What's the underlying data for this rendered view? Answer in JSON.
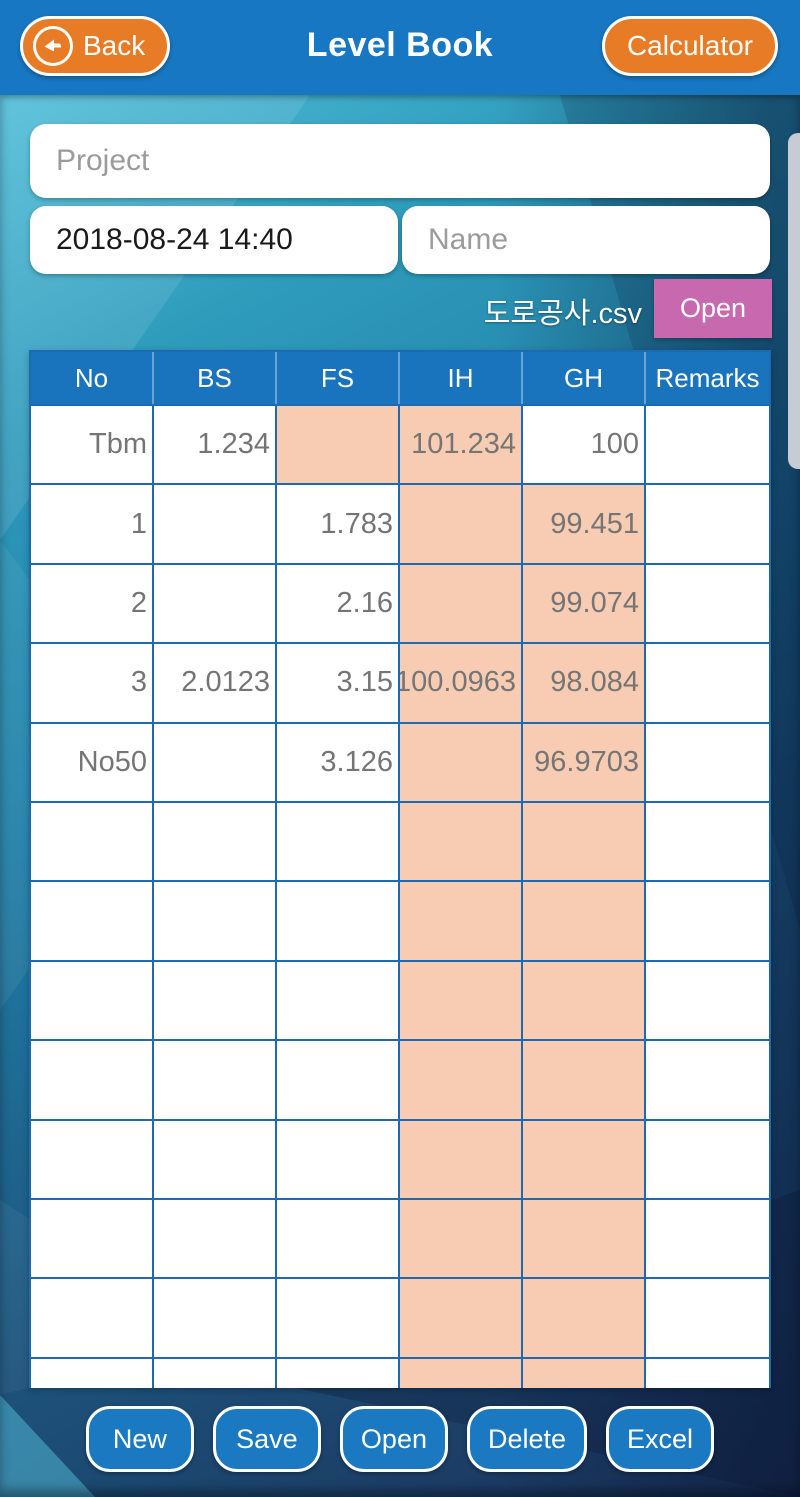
{
  "topbar": {
    "back_label": "Back",
    "title": "Level Book",
    "calculator_label": "Calculator"
  },
  "form": {
    "project_placeholder": "Project",
    "datetime_value": "2018-08-24 14:40",
    "name_placeholder": "Name",
    "csv_filename": "도로공사.csv",
    "open_label": "Open"
  },
  "table": {
    "columns": [
      "No",
      "BS",
      "FS",
      "IH",
      "GH",
      "Remarks"
    ],
    "rows": [
      {
        "cells": [
          {
            "t": "Tbm",
            "hl": false
          },
          {
            "t": "1.234",
            "hl": false
          },
          {
            "t": "",
            "hl": true
          },
          {
            "t": "101.234",
            "hl": true
          },
          {
            "t": "100",
            "hl": false
          },
          {
            "t": "",
            "hl": false
          }
        ]
      },
      {
        "cells": [
          {
            "t": "1",
            "hl": false
          },
          {
            "t": "",
            "hl": false
          },
          {
            "t": "1.783",
            "hl": false
          },
          {
            "t": "",
            "hl": true
          },
          {
            "t": "99.451",
            "hl": true
          },
          {
            "t": "",
            "hl": false
          }
        ]
      },
      {
        "cells": [
          {
            "t": "2",
            "hl": false
          },
          {
            "t": "",
            "hl": false
          },
          {
            "t": "2.16",
            "hl": false
          },
          {
            "t": "",
            "hl": true
          },
          {
            "t": "99.074",
            "hl": true
          },
          {
            "t": "",
            "hl": false
          }
        ]
      },
      {
        "cells": [
          {
            "t": "3",
            "hl": false
          },
          {
            "t": "2.0123",
            "hl": false
          },
          {
            "t": "3.15",
            "hl": false
          },
          {
            "t": "100.0963",
            "hl": true
          },
          {
            "t": "98.084",
            "hl": true
          },
          {
            "t": "",
            "hl": false
          }
        ]
      },
      {
        "cells": [
          {
            "t": "No50",
            "hl": false
          },
          {
            "t": "",
            "hl": false
          },
          {
            "t": "3.126",
            "hl": false
          },
          {
            "t": "",
            "hl": true
          },
          {
            "t": "96.9703",
            "hl": true
          },
          {
            "t": "",
            "hl": false
          }
        ]
      },
      {
        "cells": [
          {
            "t": "",
            "hl": false
          },
          {
            "t": "",
            "hl": false
          },
          {
            "t": "",
            "hl": false
          },
          {
            "t": "",
            "hl": true
          },
          {
            "t": "",
            "hl": true
          },
          {
            "t": "",
            "hl": false
          }
        ]
      },
      {
        "cells": [
          {
            "t": "",
            "hl": false
          },
          {
            "t": "",
            "hl": false
          },
          {
            "t": "",
            "hl": false
          },
          {
            "t": "",
            "hl": true
          },
          {
            "t": "",
            "hl": true
          },
          {
            "t": "",
            "hl": false
          }
        ]
      },
      {
        "cells": [
          {
            "t": "",
            "hl": false
          },
          {
            "t": "",
            "hl": false
          },
          {
            "t": "",
            "hl": false
          },
          {
            "t": "",
            "hl": true
          },
          {
            "t": "",
            "hl": true
          },
          {
            "t": "",
            "hl": false
          }
        ]
      },
      {
        "cells": [
          {
            "t": "",
            "hl": false
          },
          {
            "t": "",
            "hl": false
          },
          {
            "t": "",
            "hl": false
          },
          {
            "t": "",
            "hl": true
          },
          {
            "t": "",
            "hl": true
          },
          {
            "t": "",
            "hl": false
          }
        ]
      },
      {
        "cells": [
          {
            "t": "",
            "hl": false
          },
          {
            "t": "",
            "hl": false
          },
          {
            "t": "",
            "hl": false
          },
          {
            "t": "",
            "hl": true
          },
          {
            "t": "",
            "hl": true
          },
          {
            "t": "",
            "hl": false
          }
        ]
      },
      {
        "cells": [
          {
            "t": "",
            "hl": false
          },
          {
            "t": "",
            "hl": false
          },
          {
            "t": "",
            "hl": false
          },
          {
            "t": "",
            "hl": true
          },
          {
            "t": "",
            "hl": true
          },
          {
            "t": "",
            "hl": false
          }
        ]
      },
      {
        "cells": [
          {
            "t": "",
            "hl": false
          },
          {
            "t": "",
            "hl": false
          },
          {
            "t": "",
            "hl": false
          },
          {
            "t": "",
            "hl": true
          },
          {
            "t": "",
            "hl": true
          },
          {
            "t": "",
            "hl": false
          }
        ]
      },
      {
        "cells": [
          {
            "t": "",
            "hl": false
          },
          {
            "t": "",
            "hl": false
          },
          {
            "t": "",
            "hl": false
          },
          {
            "t": "",
            "hl": true
          },
          {
            "t": "",
            "hl": true
          },
          {
            "t": "",
            "hl": false
          }
        ]
      }
    ]
  },
  "actions": [
    "New",
    "Save",
    "Open",
    "Delete",
    "Excel"
  ],
  "colors": {
    "topbar_blue": "#1777c3",
    "header_blue": "#1a74bd",
    "grid_blue": "#1e6ab2",
    "accent_orange": "#e87c26",
    "accent_pink": "#c868ae",
    "highlight_peach": "#f8ccb2",
    "button_blue": "#1a79c0",
    "scrollbar_gray": "#c7ccd4"
  }
}
